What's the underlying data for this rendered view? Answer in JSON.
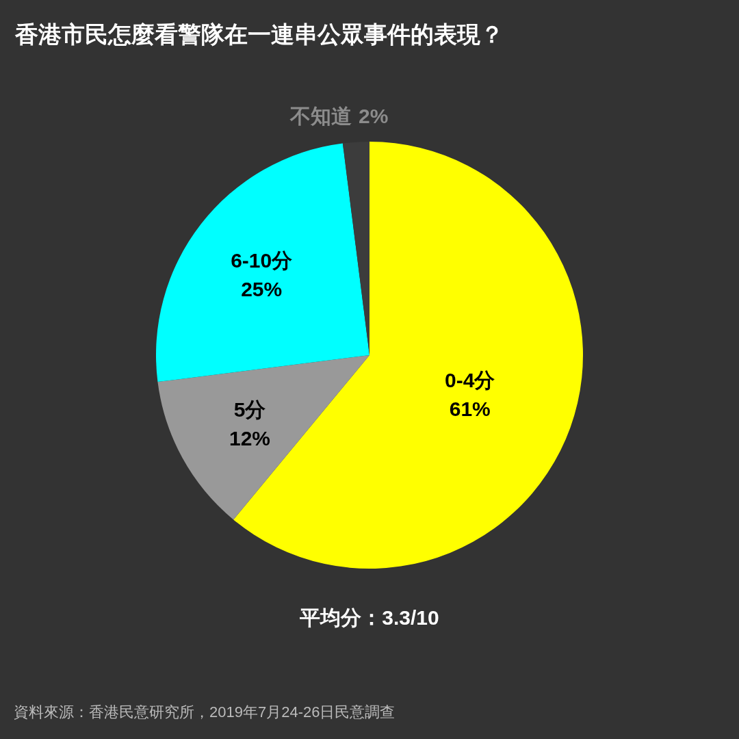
{
  "chart_data": {
    "type": "pie",
    "title": "香港市民怎麼看警隊在一連串公眾事件的表現？",
    "categories": [
      "0-4分",
      "5分",
      "6-10分",
      "不知道"
    ],
    "values": [
      61,
      12,
      25,
      2
    ],
    "colors": [
      "#ffff00",
      "#999999",
      "#00ffff",
      "#3c3c3c"
    ],
    "value_labels": [
      "61%",
      "12%",
      "25%",
      "2%"
    ],
    "annotations": [
      "平均分：3.3/10",
      "資料來源：香港民意研究所，2019年7月24-26日民意調查"
    ]
  }
}
